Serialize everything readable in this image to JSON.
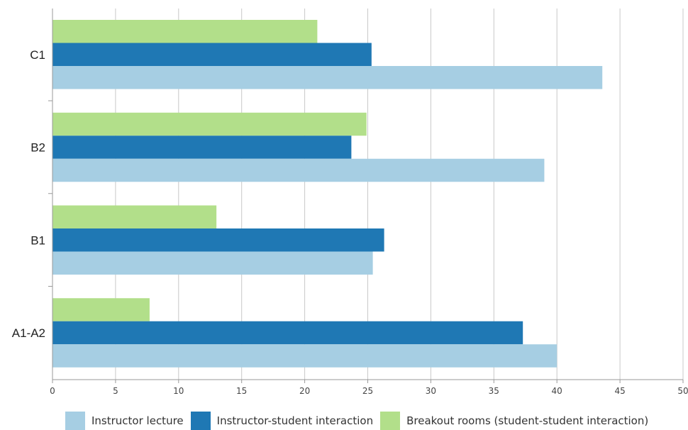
{
  "chart_data": {
    "type": "bar",
    "orientation": "horizontal",
    "categories": [
      "C1",
      "B2",
      "B1",
      "A1-A2"
    ],
    "series": [
      {
        "name": "Instructor lecture",
        "color": "#a6cee3",
        "values": [
          43.6,
          39.0,
          25.4,
          40.0
        ]
      },
      {
        "name": "Instructor-student interaction",
        "color": "#1f78b4",
        "values": [
          25.3,
          23.7,
          26.3,
          37.3
        ]
      },
      {
        "name": "Breakout rooms (student-student interaction)",
        "color": "#b2df8a",
        "values": [
          21.0,
          24.9,
          13.0,
          7.7
        ]
      }
    ],
    "xlim": [
      0,
      50
    ],
    "xticks": [
      "0",
      "5",
      "10",
      "15",
      "20",
      "25",
      "30",
      "35",
      "40",
      "45",
      "50"
    ],
    "title": "",
    "xlabel": "",
    "ylabel": "",
    "grid": "vertical",
    "legend_position": "bottom"
  }
}
